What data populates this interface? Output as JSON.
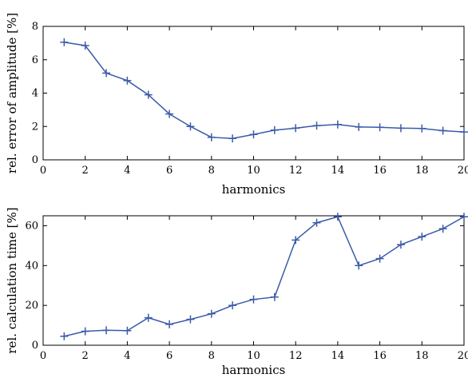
{
  "chart_data": [
    {
      "type": "line",
      "xlabel": "harmonics",
      "ylabel": "rel. error of amplitude [%]",
      "xlim": [
        0,
        20
      ],
      "ylim": [
        0,
        8
      ],
      "xticks": [
        0,
        2,
        4,
        6,
        8,
        10,
        12,
        14,
        16,
        18,
        20
      ],
      "yticks": [
        0,
        2,
        4,
        6,
        8
      ],
      "grid": false,
      "marker": "plus",
      "color": "#3a5ba8",
      "series": [
        {
          "x": [
            1,
            2,
            3,
            4,
            5,
            6,
            7,
            8,
            9,
            10,
            11,
            12,
            13,
            14,
            15,
            16,
            17,
            18,
            19,
            20
          ],
          "values": [
            7.05,
            6.85,
            5.2,
            4.75,
            3.9,
            2.75,
            2.0,
            1.35,
            1.28,
            1.52,
            1.78,
            1.9,
            2.05,
            2.12,
            1.97,
            1.95,
            1.9,
            1.88,
            1.75,
            1.67
          ]
        }
      ]
    },
    {
      "type": "line",
      "xlabel": "harmonics",
      "ylabel": "rel. calculation time [%]",
      "xlim": [
        0,
        20
      ],
      "ylim": [
        0,
        65
      ],
      "xticks": [
        0,
        2,
        4,
        6,
        8,
        10,
        12,
        14,
        16,
        18,
        20
      ],
      "yticks": [
        0,
        20,
        40,
        60
      ],
      "grid": false,
      "marker": "plus",
      "color": "#3a5ba8",
      "series": [
        {
          "x": [
            1,
            2,
            3,
            4,
            5,
            6,
            7,
            8,
            9,
            10,
            11,
            12,
            13,
            14,
            15,
            16,
            17,
            18,
            19,
            20
          ],
          "values": [
            4.5,
            7.0,
            7.5,
            7.3,
            13.8,
            10.5,
            13.0,
            15.8,
            20.0,
            23.0,
            24.2,
            52.8,
            61.5,
            64.5,
            40.0,
            43.5,
            50.5,
            54.5,
            58.5,
            64.5
          ]
        }
      ]
    }
  ]
}
